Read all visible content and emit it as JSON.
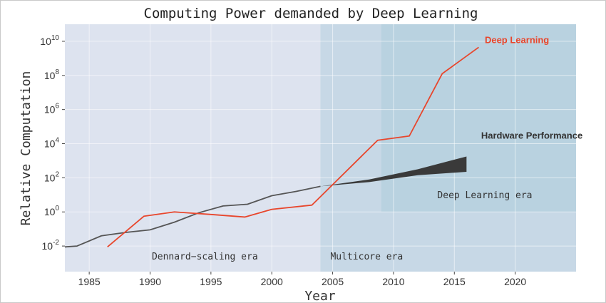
{
  "chart_data": {
    "type": "line",
    "title": "Computing Power demanded by Deep Learning",
    "xlabel": "Year",
    "ylabel": "Relative Computation",
    "xlim": [
      1983,
      2025
    ],
    "ylim_log10": [
      -3.5,
      11
    ],
    "x_ticks": [
      1985,
      1990,
      1995,
      2000,
      2005,
      2010,
      2015,
      2020
    ],
    "y_ticks": [
      {
        "exp": -2,
        "base": "10",
        "sup": "-2"
      },
      {
        "exp": 0,
        "base": "10",
        "sup": "0"
      },
      {
        "exp": 2,
        "base": "10",
        "sup": "2"
      },
      {
        "exp": 4,
        "base": "10",
        "sup": "4"
      },
      {
        "exp": 6,
        "base": "10",
        "sup": "6"
      },
      {
        "exp": 8,
        "base": "10",
        "sup": "8"
      },
      {
        "exp": 10,
        "base": "10",
        "sup": "10"
      }
    ],
    "regions": [
      {
        "name": "Dennard-scaling era",
        "label": "Dennard−scaling era",
        "x0": 1983,
        "x1": 2004,
        "y0": -3.5,
        "y1": 11,
        "color": "#dde3ef",
        "label_x": 1994.5,
        "label_y": -2.8
      },
      {
        "name": "Multicore era",
        "label": "Multicore era",
        "x0": 2004,
        "x1": 2025,
        "y0": -3.5,
        "y1": 11,
        "color": "#c7d8e6",
        "label_x": 2007.8,
        "label_y": -2.8
      },
      {
        "name": "Deep Learning era",
        "label": "Deep Learning era",
        "x0": 2009,
        "x1": 2025,
        "y0": 0,
        "y1": 11,
        "color": "#b9d2e0",
        "label_x": 2017.5,
        "label_y": 0.8
      }
    ],
    "series": [
      {
        "name": "Hardware Performance",
        "label": "Hardware Performance",
        "color": "#555555",
        "points": [
          [
            1983,
            -2.05
          ],
          [
            1984,
            -2.0
          ],
          [
            1986,
            -1.4
          ],
          [
            1988,
            -1.2
          ],
          [
            1990,
            -1.05
          ],
          [
            1992,
            -0.6
          ],
          [
            1994,
            -0.05
          ],
          [
            1996,
            0.35
          ],
          [
            1998,
            0.45
          ],
          [
            2000,
            0.95
          ],
          [
            2002,
            1.2
          ],
          [
            2004,
            1.5
          ]
        ],
        "band_upper": [
          [
            2004,
            1.5
          ],
          [
            2008,
            1.9
          ],
          [
            2012,
            2.5
          ],
          [
            2016,
            3.25
          ]
        ],
        "band_lower": [
          [
            2004,
            1.5
          ],
          [
            2008,
            1.75
          ],
          [
            2012,
            2.15
          ],
          [
            2016,
            2.35
          ]
        ],
        "label_x": 2017.2,
        "label_y": 4.3
      },
      {
        "name": "Deep Learning",
        "label": "Deep Learning",
        "color": "#e8462c",
        "points": [
          [
            1986.5,
            -2.05
          ],
          [
            1989.5,
            -0.25
          ],
          [
            1992,
            0.0
          ],
          [
            1995,
            -0.15
          ],
          [
            1997.8,
            -0.3
          ],
          [
            2000,
            0.15
          ],
          [
            2003.3,
            0.4
          ],
          [
            2008.7,
            4.2
          ],
          [
            2011.3,
            4.45
          ],
          [
            2014,
            8.1
          ],
          [
            2017,
            9.65
          ]
        ],
        "label_x": 2017.5,
        "label_y": 9.9
      }
    ]
  }
}
